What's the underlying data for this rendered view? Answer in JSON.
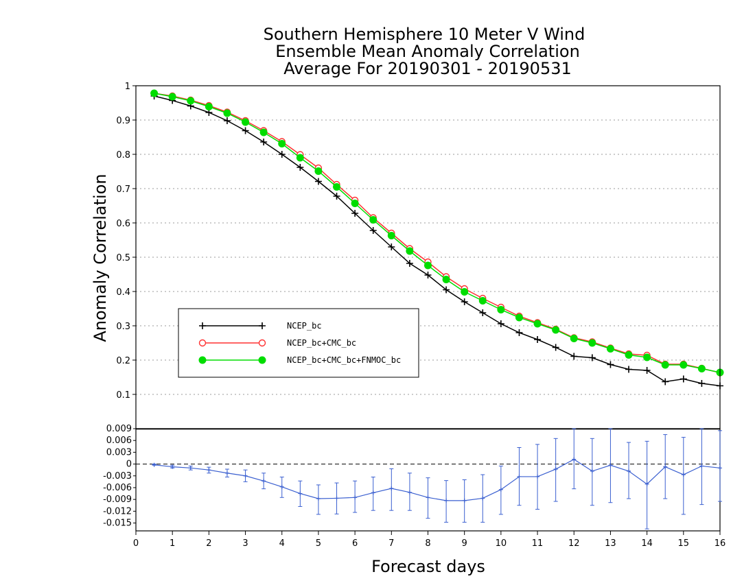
{
  "chart_data": [
    {
      "type": "line",
      "title_lines": [
        "Southern Hemisphere 10 Meter V Wind",
        "Ensemble Mean Anomaly Correlation",
        "Average For 20190301 - 20190531"
      ],
      "xlabel": "Forecast days",
      "ylabel": "Anomaly Correlation",
      "xlim": [
        0,
        16
      ],
      "ylim": [
        0,
        1
      ],
      "xticks": [
        "0",
        "1",
        "2",
        "3",
        "4",
        "5",
        "6",
        "7",
        "8",
        "9",
        "10",
        "11",
        "12",
        "13",
        "14",
        "15",
        "16"
      ],
      "yticks": [
        "0.1",
        "0.2",
        "0.3",
        "0.4",
        "0.5",
        "0.6",
        "0.7",
        "0.8",
        "0.9",
        "1"
      ],
      "grid": true,
      "legend_position": "middle-left",
      "x": [
        0.5,
        1,
        1.5,
        2,
        2.5,
        3,
        3.5,
        4,
        4.5,
        5,
        5.5,
        6,
        6.5,
        7,
        7.5,
        8,
        8.5,
        9,
        9.5,
        10,
        10.5,
        11,
        11.5,
        12,
        12.5,
        13,
        13.5,
        14,
        14.5,
        15,
        15.5,
        16
      ],
      "series": [
        {
          "name": "NCEP_bc",
          "color": "#000000",
          "marker": "plus",
          "values": [
            0.97,
            0.957,
            0.941,
            0.922,
            0.898,
            0.869,
            0.836,
            0.8,
            0.762,
            0.721,
            0.678,
            0.628,
            0.578,
            0.53,
            0.482,
            0.448,
            0.405,
            0.37,
            0.338,
            0.306,
            0.28,
            0.26,
            0.237,
            0.211,
            0.207,
            0.187,
            0.173,
            0.17,
            0.137,
            0.145,
            0.132,
            0.125
          ]
        },
        {
          "name": "NCEP_bc+CMC_bc",
          "color": "#ff3030",
          "marker": "open-circle",
          "values": [
            0.978,
            0.97,
            0.958,
            0.942,
            0.923,
            0.898,
            0.869,
            0.837,
            0.799,
            0.76,
            0.712,
            0.666,
            0.615,
            0.57,
            0.525,
            0.486,
            0.443,
            0.408,
            0.38,
            0.354,
            0.328,
            0.309,
            0.29,
            0.265,
            0.253,
            0.235,
            0.218,
            0.214,
            0.188,
            0.188,
            0.176,
            0.163
          ]
        },
        {
          "name": "NCEP_bc+CMC_bc+FNMOC_bc",
          "color": "#00dd00",
          "marker": "filled-circle",
          "values": [
            0.978,
            0.968,
            0.956,
            0.939,
            0.92,
            0.894,
            0.864,
            0.831,
            0.79,
            0.751,
            0.705,
            0.657,
            0.609,
            0.563,
            0.518,
            0.476,
            0.435,
            0.399,
            0.373,
            0.347,
            0.324,
            0.306,
            0.288,
            0.263,
            0.25,
            0.233,
            0.215,
            0.208,
            0.186,
            0.186,
            0.175,
            0.164
          ]
        }
      ]
    },
    {
      "type": "line",
      "xlim": [
        0,
        16
      ],
      "ylim": [
        -0.017,
        0.009
      ],
      "yticks": [
        "0.009",
        "0.006",
        "0.003",
        "0",
        "-0.003",
        "-0.006",
        "-0.009",
        "-0.012",
        "-0.015"
      ],
      "zero_line": "dashed",
      "series": [
        {
          "color": "#3a5fd0",
          "x": [
            0.5,
            1,
            1.5,
            2,
            2.5,
            3,
            3.5,
            4,
            4.5,
            5,
            5.5,
            6,
            6.5,
            7,
            7.5,
            8,
            8.5,
            9,
            9.5,
            10,
            10.5,
            11,
            11.5,
            12,
            12.5,
            13,
            13.5,
            14,
            14.5,
            15,
            15.5,
            16
          ],
          "values": [
            -0.0002,
            -0.0007,
            -0.001,
            -0.0015,
            -0.0023,
            -0.003,
            -0.0043,
            -0.0058,
            -0.0075,
            -0.0088,
            -0.0087,
            -0.0085,
            -0.0073,
            -0.0062,
            -0.0072,
            -0.0085,
            -0.0093,
            -0.0093,
            -0.0087,
            -0.0065,
            -0.0032,
            -0.0032,
            -0.0013,
            0.0012,
            -0.0018,
            -0.0003,
            -0.0018,
            -0.0051,
            -0.0007,
            -0.0027,
            -0.0005,
            -0.001
          ],
          "error_low": [
            -0.0003,
            -0.001,
            -0.0015,
            -0.0023,
            -0.0033,
            -0.0045,
            -0.0063,
            -0.0085,
            -0.0108,
            -0.0128,
            -0.0127,
            -0.0123,
            -0.0118,
            -0.0118,
            -0.0118,
            -0.0138,
            -0.0148,
            -0.0148,
            -0.0148,
            -0.0128,
            -0.0105,
            -0.0115,
            -0.0095,
            -0.0063,
            -0.0105,
            -0.0098,
            -0.0088,
            -0.0165,
            -0.0088,
            -0.0128,
            -0.0103,
            -0.0095
          ],
          "error_high": [
            0,
            -0.0003,
            -0.0005,
            -0.0008,
            -0.0013,
            -0.0015,
            -0.0023,
            -0.0033,
            -0.0043,
            -0.0053,
            -0.0048,
            -0.0043,
            -0.0033,
            -0.0012,
            -0.0023,
            -0.0035,
            -0.0042,
            -0.004,
            -0.0027,
            -0.0005,
            0.0042,
            0.005,
            0.0065,
            0.009,
            0.0065,
            0.009,
            0.0055,
            0.0058,
            0.0075,
            0.0068,
            0.009,
            0.0085
          ]
        }
      ]
    }
  ]
}
